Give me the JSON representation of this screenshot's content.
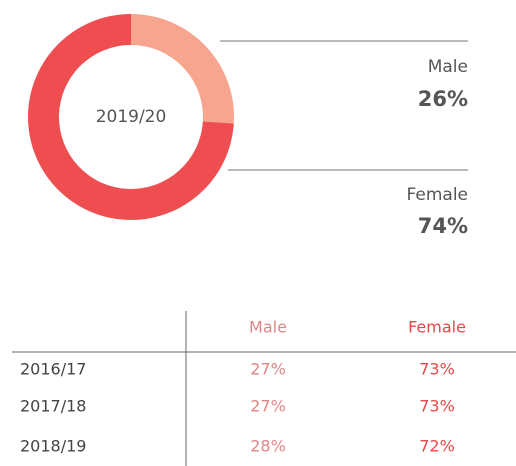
{
  "chart_data": {
    "type": "donut",
    "center_label": "2019/20",
    "categories": [
      "Male",
      "Female"
    ],
    "values": [
      26,
      74
    ],
    "value_labels": [
      "26%",
      "74%"
    ],
    "colors": [
      "#f7a58f",
      "#ef4e50"
    ]
  },
  "table": {
    "header": [
      "Male",
      "Female"
    ],
    "rows": [
      [
        "2016/17",
        "27%",
        "73%"
      ],
      [
        "2017/18",
        "27%",
        "73%"
      ],
      [
        "2018/19",
        "28%",
        "72%"
      ]
    ]
  }
}
